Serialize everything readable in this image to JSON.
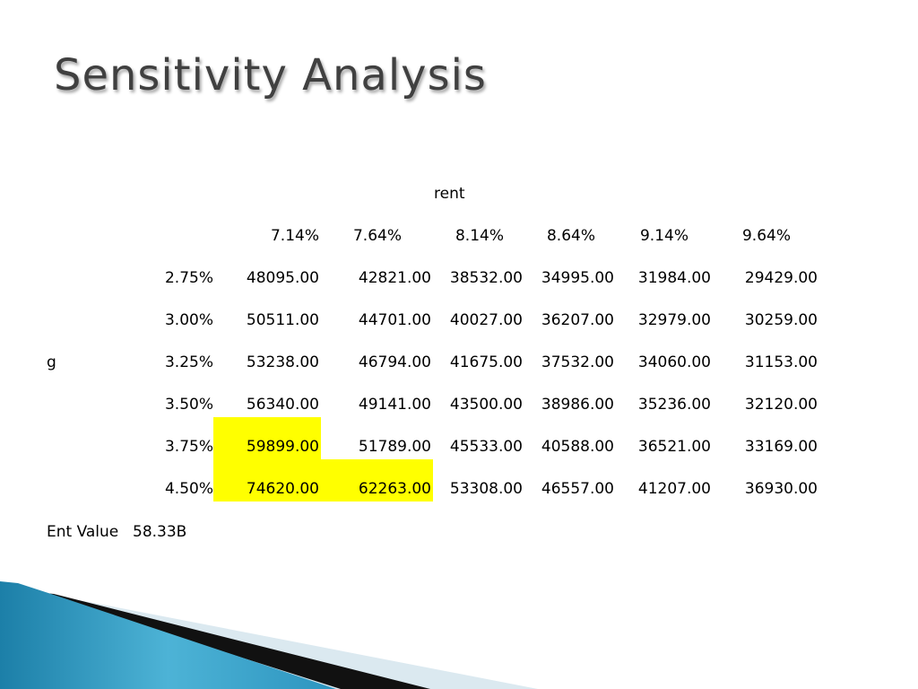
{
  "title": "Sensitivity Analysis",
  "table": {
    "column_header": "rent",
    "row_header": "g",
    "columns": [
      "7.14%",
      "7.64%",
      "8.14%",
      "8.64%",
      "9.14%",
      "9.64%"
    ],
    "rows": [
      {
        "label": "2.75%",
        "values": [
          "48095.00",
          "42821.00",
          "38532.00",
          "34995.00",
          "31984.00",
          "29429.00"
        ]
      },
      {
        "label": "3.00%",
        "values": [
          "50511.00",
          "44701.00",
          "40027.00",
          "36207.00",
          "32979.00",
          "30259.00"
        ]
      },
      {
        "label": "3.25%",
        "values": [
          "53238.00",
          "46794.00",
          "41675.00",
          "37532.00",
          "34060.00",
          "31153.00"
        ]
      },
      {
        "label": "3.50%",
        "values": [
          "56340.00",
          "49141.00",
          "43500.00",
          "38986.00",
          "35236.00",
          "32120.00"
        ]
      },
      {
        "label": "3.75%",
        "values": [
          "59899.00",
          "51789.00",
          "45533.00",
          "40588.00",
          "36521.00",
          "33169.00"
        ]
      },
      {
        "label": "4.50%",
        "values": [
          "74620.00",
          "62263.00",
          "53308.00",
          "46557.00",
          "41207.00",
          "36930.00"
        ]
      }
    ],
    "highlight_color": "#ffff00"
  },
  "footer": {
    "label": "Ent Value",
    "value": "58.33B"
  },
  "colors": {
    "title": "#404040",
    "accent_blue": "#2a8fb8",
    "accent_dark": "#111111",
    "accent_light": "#d9e9f1"
  }
}
